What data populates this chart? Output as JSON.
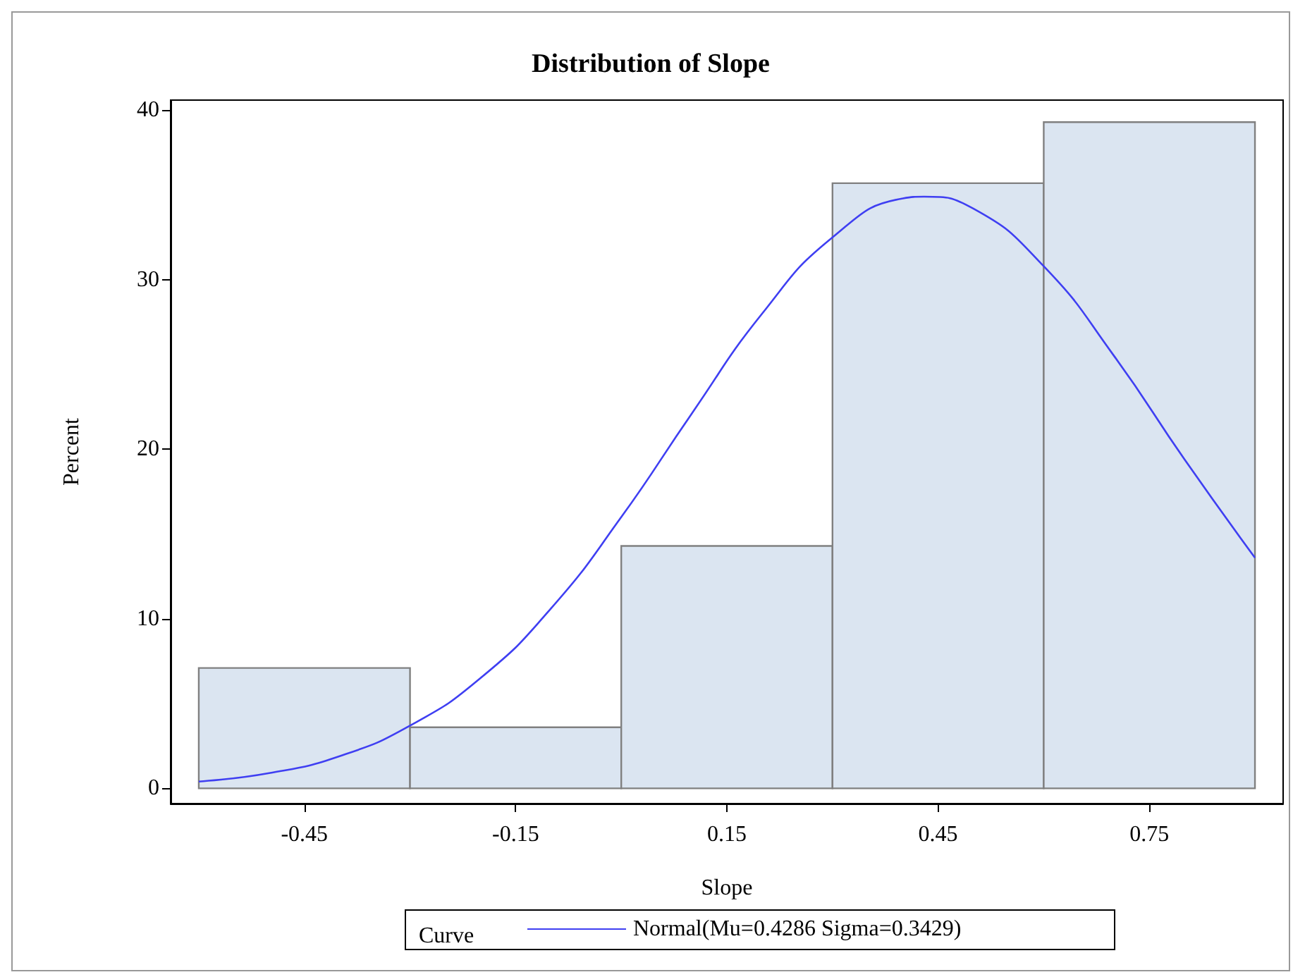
{
  "chart_data": {
    "type": "histogram",
    "title": "Distribution of Slope",
    "xlabel": "Slope",
    "ylabel": "Percent",
    "legend_title": "Curve",
    "legend": "bottom",
    "grid": false,
    "bins": [
      -0.6,
      -0.3,
      0,
      0.3,
      0.6,
      0.9
    ],
    "values": [
      7.1,
      3.6,
      14.3,
      35.7,
      39.3
    ],
    "color": "#dbe5f1",
    "xlim": [
      -0.64,
      0.94
    ],
    "xticks": [
      -0.45,
      -0.15,
      0.15,
      0.45,
      0.75
    ],
    "ylim": [
      -0.9,
      40.6
    ],
    "yticks": [
      0,
      10,
      20,
      30,
      40
    ],
    "series": [
      {
        "type": "line",
        "name": "Normal(Mu=0.4286 Sigma=0.3429)",
        "color": "#3f3ff2",
        "x": [
          -0.6,
          -0.5,
          -0.4,
          -0.3,
          -0.2,
          -0.1,
          0,
          0.1,
          0.2,
          0.3,
          0.4,
          0.43,
          0.5,
          0.6,
          0.7,
          0.8,
          0.9
        ],
        "values": [
          0.4,
          0.9,
          1.9,
          3.7,
          6.5,
          10.6,
          16.0,
          22.1,
          28.0,
          32.5,
          34.8,
          34.9,
          34.2,
          30.8,
          25.5,
          19.4,
          13.6
        ]
      }
    ]
  }
}
